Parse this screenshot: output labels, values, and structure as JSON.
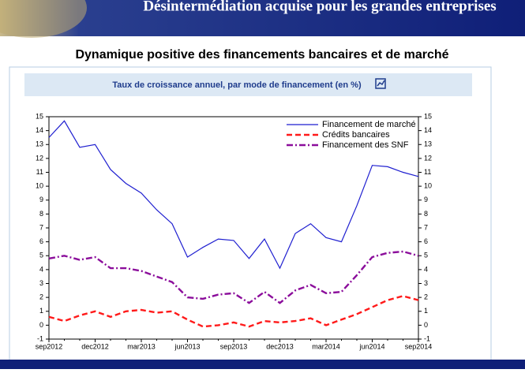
{
  "header": {
    "title": "Désintermédiation acquise pour les grandes entreprises"
  },
  "chart_data": {
    "type": "line",
    "title": "Dynamique positive des financements bancaires et de marché",
    "subtitle": "Taux de croissance annuel, par mode de financement (en %)",
    "categories": [
      "sep2012",
      null,
      null,
      "dec2012",
      null,
      null,
      "mar2013",
      null,
      null,
      "jun2013",
      null,
      null,
      "sep2013",
      null,
      null,
      "dec2013",
      null,
      null,
      "mar2014",
      null,
      null,
      "jun2014",
      null,
      null,
      "sep2014"
    ],
    "series": [
      {
        "name": "Financement de marché",
        "color": "#1f1fd0",
        "line_style": "solid",
        "values": [
          13.5,
          14.7,
          12.8,
          13.0,
          11.2,
          10.2,
          9.5,
          8.3,
          7.3,
          4.9,
          5.6,
          6.2,
          6.1,
          4.8,
          6.2,
          4.1,
          6.6,
          7.3,
          6.3,
          6.0,
          8.6,
          11.5,
          11.4,
          11.0,
          10.7
        ]
      },
      {
        "name": "Crédits bancaires",
        "color": "#ff1a1a",
        "line_style": "dashed",
        "values": [
          0.6,
          0.3,
          0.7,
          1.0,
          0.6,
          1.0,
          1.1,
          0.9,
          1.0,
          0.4,
          -0.1,
          0.0,
          0.2,
          -0.1,
          0.3,
          0.2,
          0.3,
          0.5,
          0.0,
          0.4,
          0.8,
          1.3,
          1.8,
          2.1,
          1.8
        ]
      },
      {
        "name": "Financement des SNF",
        "color": "#8b0d9b",
        "line_style": "dashdot",
        "values": [
          4.8,
          5.0,
          4.7,
          4.9,
          4.1,
          4.1,
          3.9,
          3.5,
          3.1,
          2.0,
          1.9,
          2.2,
          2.3,
          1.6,
          2.4,
          1.6,
          2.5,
          2.9,
          2.3,
          2.4,
          3.6,
          4.9,
          5.2,
          5.3,
          5.0
        ]
      }
    ],
    "ylim": [
      -1,
      15
    ],
    "yticks": [
      -1,
      0,
      1,
      2,
      3,
      4,
      5,
      6,
      7,
      8,
      9,
      10,
      11,
      12,
      13,
      14,
      15
    ],
    "y2lim": [
      -1,
      15
    ],
    "y2ticks": [
      -1,
      0,
      1,
      2,
      3,
      4,
      5,
      6,
      7,
      8,
      9,
      10,
      11,
      12,
      13,
      14,
      15
    ],
    "grid": false,
    "legend": "top-right"
  }
}
